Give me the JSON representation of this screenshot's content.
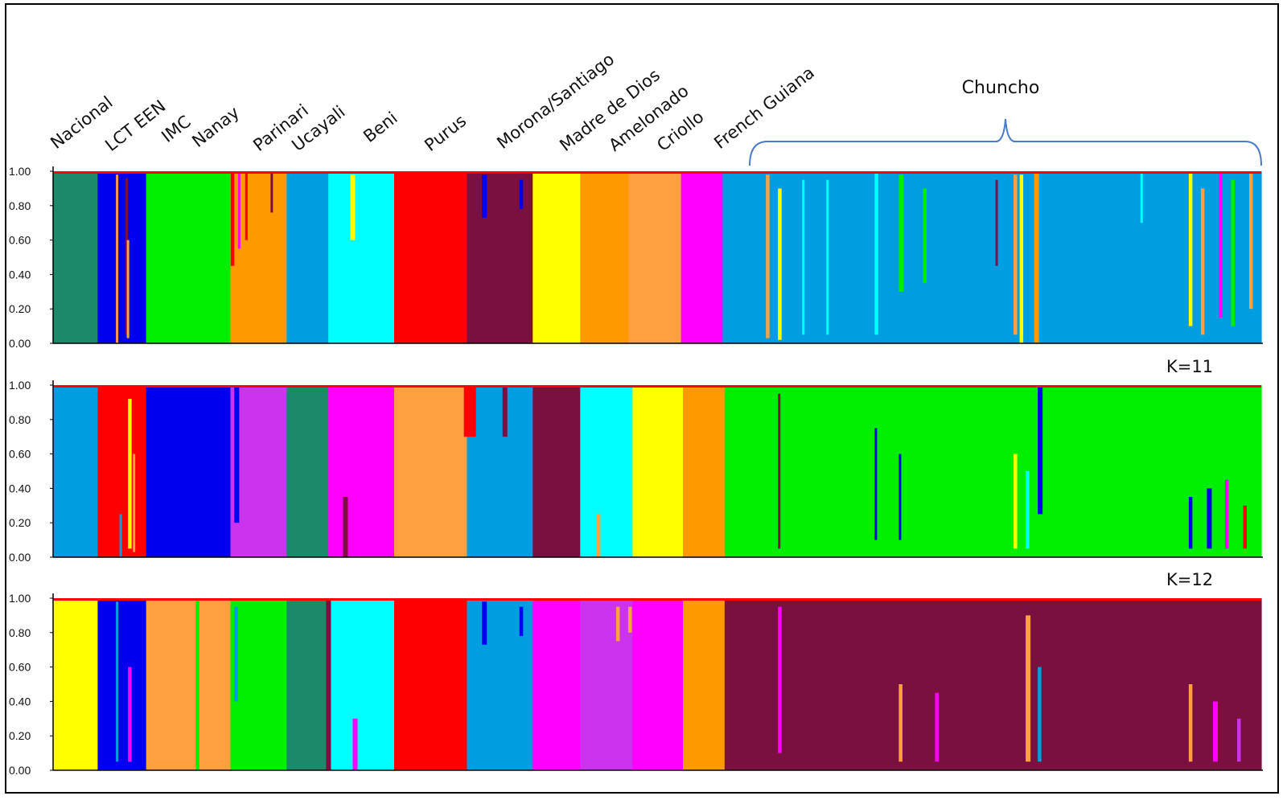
{
  "chart_data": {
    "type": "bar",
    "subtype": "stacked admixture (STRUCTURE) bar plot",
    "populations": [
      "Nacional",
      "LCT EEN",
      "IMC",
      "Nanay",
      "Parinari",
      "Ucayali",
      "Beni",
      "Purus",
      "Morona/Santiago",
      "Madre de Dios",
      "Amelonado",
      "Criollo",
      "French Guiana"
    ],
    "bracket_label": "Chuncho",
    "yticks": [
      "1.00",
      "0.80",
      "0.60",
      "0.40",
      "0.20",
      "0.00"
    ],
    "ylim": [
      0,
      1
    ],
    "panels": [
      {
        "label": "",
        "segments": [
          {
            "w": 0.0369,
            "c": "#1a8a6a"
          },
          {
            "w": 0.0401,
            "c": "#0000ee"
          },
          {
            "w": 0.0698,
            "c": "#00ee00"
          },
          {
            "w": 0.0465,
            "c": "#ff9900"
          },
          {
            "w": 0.0345,
            "c": "#009ee0"
          },
          {
            "w": 0.0545,
            "c": "#00ffff"
          },
          {
            "w": 0.0602,
            "c": "#ff0000"
          },
          {
            "w": 0.0545,
            "c": "#7a1040"
          },
          {
            "w": 0.0393,
            "c": "#ffff00"
          },
          {
            "w": 0.0401,
            "c": "#ff9900"
          },
          {
            "w": 0.0433,
            "c": "#ffa040"
          },
          {
            "w": 0.0345,
            "c": "#ff00ff"
          },
          {
            "w": 0.4458,
            "c": "#009ee0"
          }
        ],
        "streaks": [
          {
            "x": 0.052,
            "w": 0.002,
            "top": 0.98,
            "bottom": 0.0,
            "c": "#ffa040"
          },
          {
            "x": 0.06,
            "w": 0.002,
            "top": 0.96,
            "bottom": 0.05,
            "c": "#7a1040"
          },
          {
            "x": 0.061,
            "w": 0.002,
            "top": 0.6,
            "bottom": 0.03,
            "c": "#ffa040"
          },
          {
            "x": 0.147,
            "w": 0.003,
            "top": 1.0,
            "bottom": 0.45,
            "c": "#ff0000"
          },
          {
            "x": 0.153,
            "w": 0.002,
            "top": 1.0,
            "bottom": 0.55,
            "c": "#ff00ff"
          },
          {
            "x": 0.159,
            "w": 0.002,
            "top": 1.0,
            "bottom": 0.6,
            "c": "#ff0000"
          },
          {
            "x": 0.18,
            "w": 0.002,
            "top": 1.0,
            "bottom": 0.76,
            "c": "#7a1040"
          },
          {
            "x": 0.246,
            "w": 0.004,
            "top": 0.98,
            "bottom": 0.6,
            "c": "#ffff00"
          },
          {
            "x": 0.355,
            "w": 0.004,
            "top": 0.98,
            "bottom": 0.73,
            "c": "#0000ee"
          },
          {
            "x": 0.386,
            "w": 0.003,
            "top": 0.95,
            "bottom": 0.78,
            "c": "#0000ee"
          },
          {
            "x": 0.59,
            "w": 0.003,
            "top": 0.98,
            "bottom": 0.03,
            "c": "#ffa040"
          },
          {
            "x": 0.6,
            "w": 0.003,
            "top": 0.9,
            "bottom": 0.02,
            "c": "#ffff00"
          },
          {
            "x": 0.62,
            "w": 0.002,
            "top": 0.95,
            "bottom": 0.05,
            "c": "#00ffff"
          },
          {
            "x": 0.64,
            "w": 0.002,
            "top": 0.95,
            "bottom": 0.05,
            "c": "#00ffff"
          },
          {
            "x": 0.68,
            "w": 0.003,
            "top": 1.0,
            "bottom": 0.05,
            "c": "#00ffff"
          },
          {
            "x": 0.7,
            "w": 0.004,
            "top": 0.98,
            "bottom": 0.3,
            "c": "#00ee00"
          },
          {
            "x": 0.72,
            "w": 0.003,
            "top": 0.9,
            "bottom": 0.35,
            "c": "#00ee00"
          },
          {
            "x": 0.78,
            "w": 0.002,
            "top": 0.95,
            "bottom": 0.45,
            "c": "#7a1040"
          },
          {
            "x": 0.795,
            "w": 0.003,
            "top": 0.98,
            "bottom": 0.05,
            "c": "#ffa040"
          },
          {
            "x": 0.8,
            "w": 0.003,
            "top": 0.98,
            "bottom": 0.0,
            "c": "#ffff00"
          },
          {
            "x": 0.812,
            "w": 0.004,
            "top": 1.0,
            "bottom": 0.0,
            "c": "#ff9900"
          },
          {
            "x": 0.9,
            "w": 0.002,
            "top": 1.0,
            "bottom": 0.7,
            "c": "#00ffff"
          },
          {
            "x": 0.94,
            "w": 0.003,
            "top": 1.0,
            "bottom": 0.1,
            "c": "#ffff00"
          },
          {
            "x": 0.95,
            "w": 0.003,
            "top": 0.9,
            "bottom": 0.05,
            "c": "#ffa040"
          },
          {
            "x": 0.965,
            "w": 0.003,
            "top": 1.0,
            "bottom": 0.15,
            "c": "#ff00ff"
          },
          {
            "x": 0.975,
            "w": 0.003,
            "top": 0.95,
            "bottom": 0.1,
            "c": "#00ee00"
          },
          {
            "x": 0.99,
            "w": 0.003,
            "top": 1.0,
            "bottom": 0.2,
            "c": "#ffa040"
          }
        ]
      },
      {
        "label": "K=11",
        "segments": [
          {
            "w": 0.0369,
            "c": "#009ee0"
          },
          {
            "w": 0.0401,
            "c": "#ff0000"
          },
          {
            "w": 0.0698,
            "c": "#0000ee"
          },
          {
            "w": 0.0465,
            "c": "#cc33ee"
          },
          {
            "w": 0.0345,
            "c": "#1a8a6a"
          },
          {
            "w": 0.0545,
            "c": "#ff00ff"
          },
          {
            "w": 0.0602,
            "c": "#ffa040"
          },
          {
            "w": 0.0545,
            "c": "#009ee0"
          },
          {
            "w": 0.0393,
            "c": "#7a1040"
          },
          {
            "w": 0.0433,
            "c": "#00ffff"
          },
          {
            "w": 0.0417,
            "c": "#ffff00"
          },
          {
            "w": 0.0345,
            "c": "#ff9900"
          },
          {
            "w": 0.4442,
            "c": "#00ee00"
          }
        ],
        "streaks": [
          {
            "x": 0.055,
            "w": 0.002,
            "top": 0.25,
            "bottom": 0.0,
            "c": "#009ee0"
          },
          {
            "x": 0.062,
            "w": 0.003,
            "top": 0.92,
            "bottom": 0.05,
            "c": "#ffff00"
          },
          {
            "x": 0.066,
            "w": 0.002,
            "top": 0.6,
            "bottom": 0.03,
            "c": "#ffa040"
          },
          {
            "x": 0.15,
            "w": 0.004,
            "top": 1.0,
            "bottom": 0.2,
            "c": "#0000ee"
          },
          {
            "x": 0.24,
            "w": 0.004,
            "top": 0.35,
            "bottom": 0.0,
            "c": "#7a1040"
          },
          {
            "x": 0.34,
            "w": 0.01,
            "top": 1.0,
            "bottom": 0.7,
            "c": "#ff0000"
          },
          {
            "x": 0.372,
            "w": 0.004,
            "top": 1.0,
            "bottom": 0.7,
            "c": "#7a1040"
          },
          {
            "x": 0.45,
            "w": 0.003,
            "top": 0.25,
            "bottom": 0.0,
            "c": "#ffa040"
          },
          {
            "x": 0.6,
            "w": 0.002,
            "top": 0.95,
            "bottom": 0.05,
            "c": "#7a1040"
          },
          {
            "x": 0.68,
            "w": 0.002,
            "top": 0.75,
            "bottom": 0.1,
            "c": "#0000ee"
          },
          {
            "x": 0.7,
            "w": 0.002,
            "top": 0.6,
            "bottom": 0.1,
            "c": "#0000ee"
          },
          {
            "x": 0.795,
            "w": 0.003,
            "top": 0.6,
            "bottom": 0.05,
            "c": "#ffff00"
          },
          {
            "x": 0.805,
            "w": 0.003,
            "top": 0.5,
            "bottom": 0.05,
            "c": "#00ffff"
          },
          {
            "x": 0.815,
            "w": 0.004,
            "top": 1.0,
            "bottom": 0.25,
            "c": "#0000ee"
          },
          {
            "x": 0.94,
            "w": 0.003,
            "top": 0.35,
            "bottom": 0.05,
            "c": "#0000ee"
          },
          {
            "x": 0.955,
            "w": 0.004,
            "top": 0.4,
            "bottom": 0.05,
            "c": "#0000ee"
          },
          {
            "x": 0.97,
            "w": 0.003,
            "top": 0.45,
            "bottom": 0.05,
            "c": "#ff00ff"
          },
          {
            "x": 0.985,
            "w": 0.003,
            "top": 0.3,
            "bottom": 0.05,
            "c": "#ff0000"
          }
        ]
      },
      {
        "label": "K=12",
        "segments": [
          {
            "w": 0.0369,
            "c": "#ffff00"
          },
          {
            "w": 0.0401,
            "c": "#0000ee"
          },
          {
            "w": 0.0698,
            "c": "#ffa040"
          },
          {
            "w": 0.0465,
            "c": "#00ee00"
          },
          {
            "w": 0.0345,
            "c": "#1a8a6a"
          },
          {
            "w": 0.0545,
            "c": "#00ffff"
          },
          {
            "w": 0.0602,
            "c": "#ff0000"
          },
          {
            "w": 0.0545,
            "c": "#009ee0"
          },
          {
            "w": 0.0393,
            "c": "#ff00ff"
          },
          {
            "w": 0.0433,
            "c": "#cc33ee"
          },
          {
            "w": 0.0417,
            "c": "#ff00ff"
          },
          {
            "w": 0.0345,
            "c": "#ff9900"
          },
          {
            "w": 0.4442,
            "c": "#7a1040"
          }
        ],
        "streaks": [
          {
            "x": 0.052,
            "w": 0.002,
            "top": 0.98,
            "bottom": 0.05,
            "c": "#009ee0"
          },
          {
            "x": 0.062,
            "w": 0.003,
            "top": 0.6,
            "bottom": 0.05,
            "c": "#ff00ff"
          },
          {
            "x": 0.118,
            "w": 0.003,
            "top": 1.0,
            "bottom": 0.0,
            "c": "#00ee00"
          },
          {
            "x": 0.15,
            "w": 0.003,
            "top": 0.95,
            "bottom": 0.4,
            "c": "#009ee0"
          },
          {
            "x": 0.226,
            "w": 0.004,
            "top": 1.0,
            "bottom": 0.0,
            "c": "#7a1040"
          },
          {
            "x": 0.248,
            "w": 0.004,
            "top": 0.3,
            "bottom": 0.0,
            "c": "#ff00ff"
          },
          {
            "x": 0.355,
            "w": 0.004,
            "top": 0.98,
            "bottom": 0.73,
            "c": "#0000ee"
          },
          {
            "x": 0.386,
            "w": 0.003,
            "top": 0.95,
            "bottom": 0.78,
            "c": "#0000ee"
          },
          {
            "x": 0.466,
            "w": 0.003,
            "top": 0.95,
            "bottom": 0.75,
            "c": "#ffa040"
          },
          {
            "x": 0.476,
            "w": 0.003,
            "top": 0.95,
            "bottom": 0.8,
            "c": "#ffa040"
          },
          {
            "x": 0.6,
            "w": 0.003,
            "top": 0.95,
            "bottom": 0.1,
            "c": "#ff00ff"
          },
          {
            "x": 0.7,
            "w": 0.003,
            "top": 0.5,
            "bottom": 0.05,
            "c": "#ffa040"
          },
          {
            "x": 0.73,
            "w": 0.003,
            "top": 0.45,
            "bottom": 0.05,
            "c": "#ff00ff"
          },
          {
            "x": 0.805,
            "w": 0.004,
            "top": 0.9,
            "bottom": 0.05,
            "c": "#ffa040"
          },
          {
            "x": 0.815,
            "w": 0.003,
            "top": 0.6,
            "bottom": 0.05,
            "c": "#009ee0"
          },
          {
            "x": 0.94,
            "w": 0.003,
            "top": 0.5,
            "bottom": 0.05,
            "c": "#ffa040"
          },
          {
            "x": 0.96,
            "w": 0.004,
            "top": 0.4,
            "bottom": 0.05,
            "c": "#ff00ff"
          },
          {
            "x": 0.98,
            "w": 0.003,
            "top": 0.3,
            "bottom": 0.05,
            "c": "#cc33ee"
          }
        ]
      }
    ],
    "colors": {
      "bracket": "#4a7cc9",
      "frame": "#000000",
      "topline": "#ff0000"
    }
  }
}
